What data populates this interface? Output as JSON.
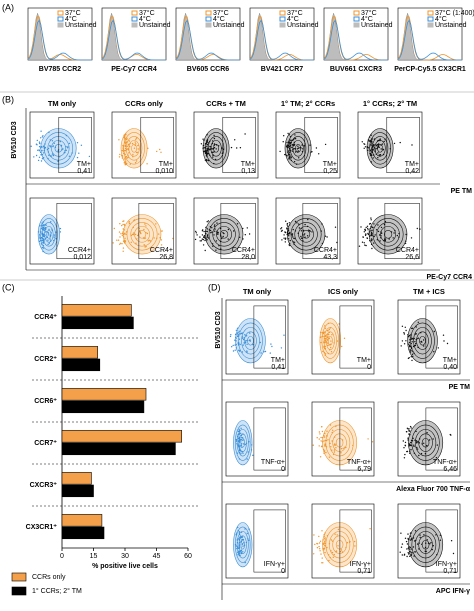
{
  "panels": {
    "A": {
      "label": "(A)",
      "plots": [
        {
          "legend": [
            "37°C",
            "4°C",
            "Unstained"
          ],
          "xlabel": "BV785 CCR2"
        },
        {
          "legend": [
            "37°C",
            "4°C",
            "Unstained"
          ],
          "xlabel": "PE-Cy7 CCR4"
        },
        {
          "legend": [
            "37°C",
            "4°C",
            "Unstained"
          ],
          "xlabel": "BV605 CCR6"
        },
        {
          "legend": [
            "37°C",
            "4°C",
            "Unstained"
          ],
          "xlabel": "BV421 CCR7"
        },
        {
          "legend": [
            "37°C",
            "4°C",
            "Unstained"
          ],
          "xlabel": "BUV661 CXCR3"
        },
        {
          "legend": [
            "37°C (1:400)",
            "4°C",
            "Unstained"
          ],
          "xlabel": "PerCP-Cy5.5 CX3CR1"
        }
      ]
    },
    "B": {
      "label": "(B)",
      "ylabel": "BV510 CD3",
      "columns": [
        "TM only",
        "CCRs only",
        "CCRs + TM",
        "1° TM; 2° CCRs",
        "1° CCRs; 2° TM"
      ],
      "rows": [
        {
          "gate": "TM+",
          "values": [
            "0,41",
            "0,010",
            "0,13",
            "0,25",
            "0,42"
          ],
          "xlabel": "PE TM"
        },
        {
          "gate": "CCR4+",
          "values": [
            "0,012",
            "26,8",
            "28,0",
            "43,3",
            "26,6"
          ],
          "xlabel": "PE-Cy7 CCR4"
        }
      ]
    },
    "C": {
      "label": "(C)"
    },
    "D": {
      "label": "(D)",
      "ylabel": "BV510 CD3",
      "columns": [
        "TM only",
        "ICS only",
        "TM + ICS"
      ],
      "rows": [
        {
          "gate": "TM+",
          "values": [
            "0,41",
            "0",
            "0,40"
          ],
          "xlabel": "PE TM"
        },
        {
          "gate": "TNF-α+",
          "values": [
            "0",
            "6,79",
            "6,46"
          ],
          "xlabel": "Alexa Fluor 700 TNF-α"
        },
        {
          "gate": "IFN-γ+",
          "values": [
            "0",
            "0,71",
            "0,71"
          ],
          "xlabel": "APC IFN-γ"
        }
      ]
    }
  },
  "chart_data": {
    "type": "barh",
    "categories": [
      "CCR4⁺",
      "CCR2⁺",
      "CCR6⁺",
      "CCR7⁺",
      "CXCR3⁺",
      "CX3CR1⁺"
    ],
    "series": [
      {
        "name": "CCRs only",
        "color": "#f4a04a",
        "values": [
          33,
          17,
          40,
          57,
          14,
          19
        ]
      },
      {
        "name": "1° CCRs; 2° TM",
        "color": "#000000",
        "values": [
          34,
          18,
          39,
          54,
          15,
          20
        ]
      }
    ],
    "xlim": [
      0,
      60
    ],
    "xticks": [
      0,
      15,
      30,
      45,
      60
    ],
    "xlabel": "% positive live cells"
  }
}
